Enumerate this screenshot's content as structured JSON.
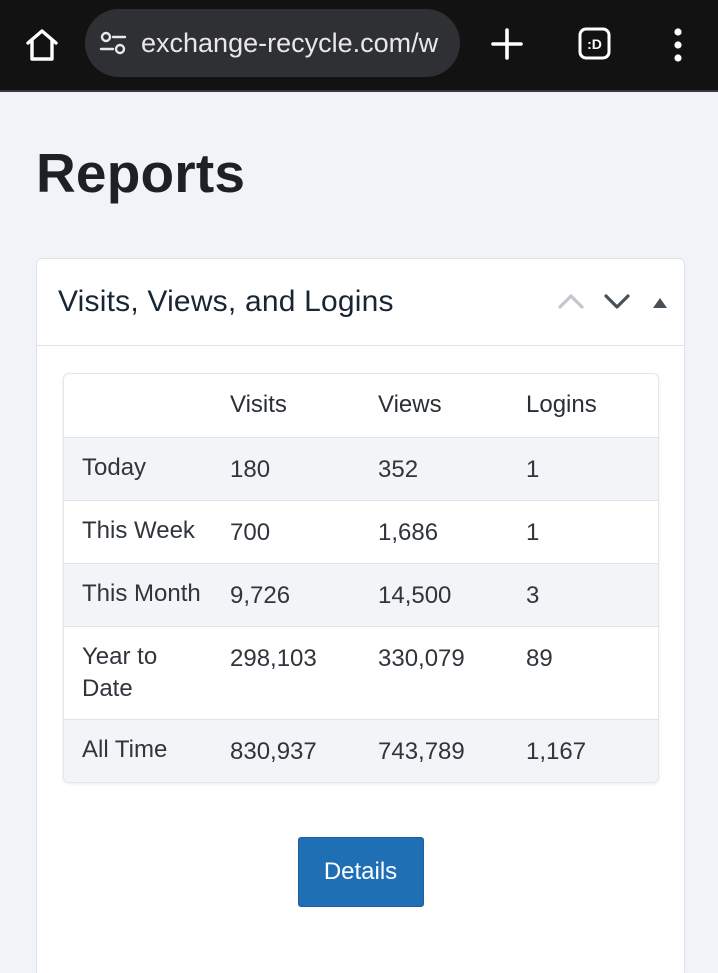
{
  "browser": {
    "url": "exchange-recycle.com/w",
    "tabs_badge": ":D",
    "icons": [
      "home-icon",
      "site-settings-icon",
      "new-tab-icon",
      "tab-switcher-icon",
      "more-menu-icon"
    ]
  },
  "page": {
    "title": "Reports"
  },
  "card": {
    "title": "Visits, Views, and Logins",
    "icons": [
      "chevron-up-icon",
      "chevron-down-icon",
      "caret-up-icon"
    ],
    "table": {
      "headers": [
        "",
        "Visits",
        "Views",
        "Logins"
      ],
      "rows": [
        {
          "label": "Today",
          "visits": "180",
          "views": "352",
          "logins": "1"
        },
        {
          "label": "This Week",
          "visits": "700",
          "views": "1,686",
          "logins": "1"
        },
        {
          "label": "This Month",
          "visits": "9,726",
          "views": "14,500",
          "logins": "3"
        },
        {
          "label": "Year to Date",
          "visits": "298,103",
          "views": "330,079",
          "logins": "89"
        },
        {
          "label": "All Time",
          "visits": "830,937",
          "views": "743,789",
          "logins": "1,167"
        }
      ]
    },
    "details_label": "Details"
  },
  "colors": {
    "chrome_bg": "#121212",
    "page_bg": "#f0f4f8",
    "button_primary": "#1f6fb5",
    "striped_row": "#f2f4f7"
  }
}
